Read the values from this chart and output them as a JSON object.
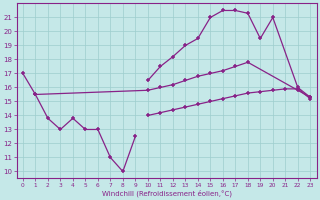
{
  "xlabel": "Windchill (Refroidissement éolien,°C)",
  "xlim": [
    -0.5,
    23.5
  ],
  "ylim": [
    9.5,
    22
  ],
  "yticks": [
    10,
    11,
    12,
    13,
    14,
    15,
    16,
    17,
    18,
    19,
    20,
    21
  ],
  "xticks": [
    0,
    1,
    2,
    3,
    4,
    5,
    6,
    7,
    8,
    9,
    10,
    11,
    12,
    13,
    14,
    15,
    16,
    17,
    18,
    19,
    20,
    21,
    22,
    23
  ],
  "background_color": "#c5e8e8",
  "line_color": "#882288",
  "grid_color": "#9ecece",
  "line1_x": [
    0,
    1,
    2,
    3,
    4,
    5,
    6,
    7,
    8,
    9
  ],
  "line1_y": [
    17.0,
    15.5,
    13.8,
    13.0,
    13.8,
    13.0,
    13.0,
    11.0,
    10.0,
    12.5
  ],
  "line2_x": [
    1,
    10,
    11,
    12,
    13,
    14,
    15,
    16,
    17,
    18,
    22,
    23
  ],
  "line2_y": [
    15.5,
    15.8,
    16.0,
    16.2,
    16.5,
    16.8,
    17.0,
    17.2,
    17.5,
    17.8,
    15.8,
    15.3
  ],
  "line3_x": [
    10,
    11,
    12,
    13,
    14,
    15,
    16,
    17,
    18,
    19,
    20,
    22,
    23
  ],
  "line3_y": [
    16.5,
    17.5,
    18.2,
    19.0,
    19.5,
    21.0,
    21.5,
    21.5,
    21.3,
    19.5,
    21.0,
    16.0,
    15.3
  ],
  "line4_x": [
    10,
    11,
    12,
    13,
    14,
    15,
    16,
    17,
    18,
    19,
    20,
    21,
    22,
    23
  ],
  "line4_y": [
    14.0,
    14.2,
    14.4,
    14.6,
    14.8,
    15.0,
    15.2,
    15.4,
    15.6,
    15.7,
    15.8,
    15.9,
    15.9,
    15.2
  ]
}
